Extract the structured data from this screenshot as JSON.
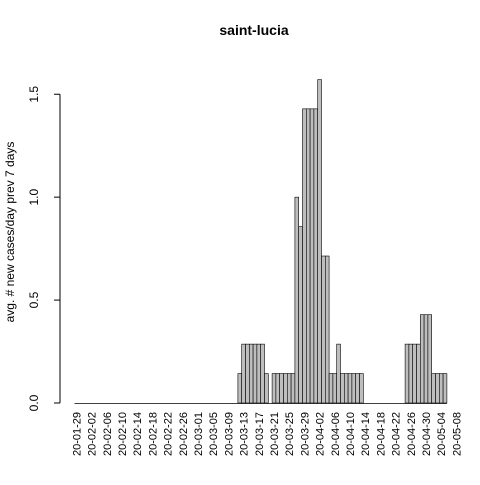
{
  "chart_data": {
    "type": "bar",
    "title": "saint-lucia",
    "xlabel": "",
    "ylabel": "avg. # new cases/day prev  7  days",
    "ylim": [
      0,
      1.6
    ],
    "yticks": [
      0.0,
      0.5,
      1.0,
      1.5
    ],
    "ytick_labels": [
      "0.0",
      "0.5",
      "1.0",
      "1.5"
    ],
    "start_date": "2020-01-29",
    "tick_labels": [
      "20-01-29",
      "20-02-02",
      "20-02-06",
      "20-02-10",
      "20-02-14",
      "20-02-18",
      "20-02-22",
      "20-02-26",
      "20-03-01",
      "20-03-05",
      "20-03-09",
      "20-03-13",
      "20-03-17",
      "20-03-21",
      "20-03-25",
      "20-03-29",
      "20-04-02",
      "20-04-06",
      "20-04-10",
      "20-04-14",
      "20-04-18",
      "20-04-22",
      "20-04-26",
      "20-04-30",
      "20-05-04",
      "20-05-08"
    ],
    "values": [
      0,
      0,
      0,
      0,
      0,
      0,
      0,
      0,
      0,
      0,
      0,
      0,
      0,
      0,
      0,
      0,
      0,
      0,
      0,
      0,
      0,
      0,
      0,
      0,
      0,
      0,
      0,
      0,
      0,
      0,
      0,
      0,
      0,
      0,
      0,
      0,
      0,
      0,
      0,
      0,
      0,
      0,
      0,
      0.143,
      0.286,
      0.286,
      0.286,
      0.286,
      0.286,
      0.286,
      0.143,
      0,
      0.143,
      0.143,
      0.143,
      0.143,
      0.143,
      0.143,
      1.0,
      0.857,
      1.429,
      1.429,
      1.429,
      1.429,
      1.571,
      0.714,
      0.714,
      0.143,
      0.143,
      0.286,
      0.143,
      0.143,
      0.143,
      0.143,
      0.143,
      0.143,
      0,
      0,
      0,
      0,
      0,
      0,
      0,
      0,
      0,
      0,
      0,
      0.286,
      0.286,
      0.286,
      0.286,
      0.429,
      0.429,
      0.429,
      0.143,
      0.143,
      0.143,
      0.143
    ],
    "bar_color": "#bebebe",
    "bar_edge_color": "#000000",
    "grid": false,
    "legend": false
  }
}
